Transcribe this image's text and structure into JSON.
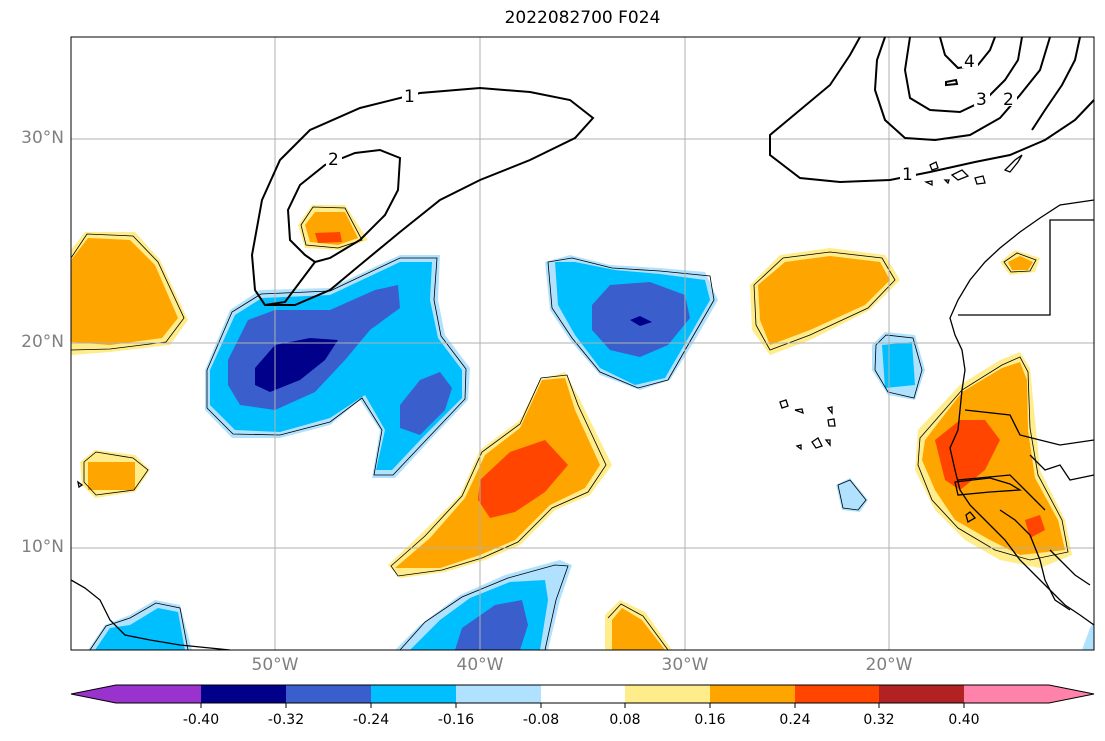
{
  "title": "2022082700 F024",
  "map": {
    "lat_labels": [
      "30°N",
      "20°N",
      "10°N"
    ],
    "lon_labels": [
      "50°W",
      "40°W",
      "30°W",
      "20°W"
    ],
    "extent": {
      "lon_min": -60,
      "lon_max": -10,
      "lat_min": 5,
      "lat_max": 35
    },
    "contour_labels": [
      "1",
      "2",
      "1",
      "2",
      "3",
      "4"
    ]
  },
  "colorbar": {
    "ticks": [
      "-0.40",
      "-0.32",
      "-0.24",
      "-0.16",
      "-0.08",
      "0.08",
      "0.16",
      "0.24",
      "0.32",
      "0.40"
    ],
    "colors": [
      "#9a32cd",
      "#00008b",
      "#3a5fcd",
      "#00bfff",
      "#b0e2ff",
      "#ffffff",
      "#ffec8b",
      "#ffa500",
      "#ff4500",
      "#b22222",
      "#ff82ab"
    ]
  }
}
